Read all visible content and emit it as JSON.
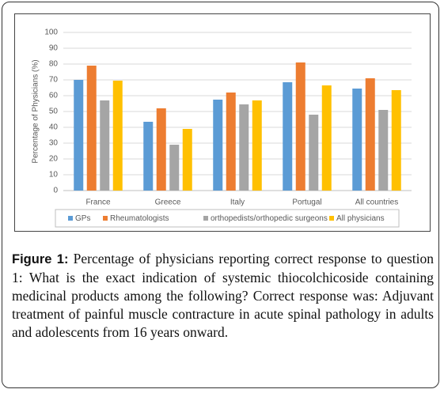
{
  "chart_data": {
    "type": "bar",
    "y_label": "Percentage of Physicians (%)",
    "categories": [
      "France",
      "Greece",
      "Italy",
      "Portugal",
      "All countries"
    ],
    "series": [
      {
        "name": "GPs",
        "color": "#5b9bd5",
        "values": [
          70,
          43.5,
          57.5,
          68.5,
          64.5
        ]
      },
      {
        "name": "Rheumatologists",
        "color": "#ed7d31",
        "values": [
          79,
          52,
          62,
          81,
          71
        ]
      },
      {
        "name": "orthopedists/orthopedic surgeons",
        "color": "#a5a5a5",
        "values": [
          57,
          29,
          54.5,
          48,
          51
        ]
      },
      {
        "name": "All physicians",
        "color": "#ffc000",
        "values": [
          69.5,
          39,
          57,
          66.5,
          63.5
        ]
      }
    ],
    "ylim": [
      0,
      100
    ],
    "yticks": [
      0,
      10,
      20,
      30,
      40,
      50,
      60,
      70,
      80,
      90,
      100
    ],
    "grid": true
  },
  "figure_label": "Figure 1:",
  "caption": "Percentage of physicians reporting correct response to question 1: What is the exact indication of systemic thiocolchicoside containing medicinal products among the following? Correct response was: Adjuvant treatment of painful muscle contracture in acute spinal pathology in adults and adolescents from 16 years onward."
}
